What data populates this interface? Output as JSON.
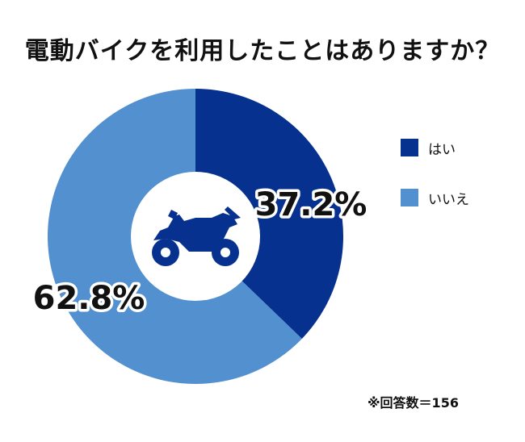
{
  "chart_data": {
    "type": "pie",
    "title": "電動バイクを利用したことはありますか？",
    "categories": [
      "はい",
      "いいえ"
    ],
    "values": [
      37.2,
      62.8
    ],
    "value_labels": [
      "37.2%",
      "62.8%"
    ],
    "colors": [
      "#06318f",
      "#5290cf"
    ],
    "donut": true,
    "center_icon": "motorcycle-icon",
    "legend_position": "right",
    "note": "※回答数＝156"
  }
}
